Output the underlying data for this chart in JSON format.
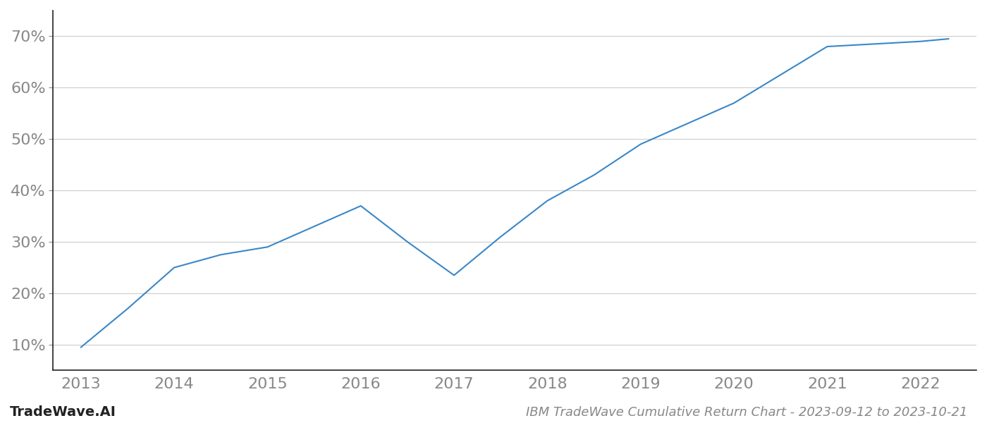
{
  "x_years": [
    2013,
    2013.5,
    2014,
    2014.5,
    2015,
    2015.5,
    2016,
    2016.5,
    2017,
    2017.5,
    2018,
    2018.5,
    2019,
    2019.5,
    2020,
    2020.5,
    2021,
    2021.5,
    2022,
    2022.3
  ],
  "y_values": [
    9.5,
    17.0,
    25.0,
    27.5,
    29.0,
    33.0,
    37.0,
    30.0,
    23.5,
    31.0,
    38.0,
    43.0,
    49.0,
    53.0,
    57.0,
    62.5,
    68.0,
    68.5,
    69.0,
    69.5
  ],
  "line_color": "#3a87c8",
  "line_width": 1.5,
  "background_color": "#ffffff",
  "grid_color": "#cccccc",
  "title": "IBM TradeWave Cumulative Return Chart - 2023-09-12 to 2023-10-21",
  "watermark": "TradeWave.AI",
  "ytick_labels": [
    "10%",
    "20%",
    "30%",
    "40%",
    "50%",
    "60%",
    "70%"
  ],
  "ytick_values": [
    10,
    20,
    30,
    40,
    50,
    60,
    70
  ],
  "xlim": [
    2012.7,
    2022.6
  ],
  "ylim": [
    5,
    75
  ],
  "xtick_years": [
    2013,
    2014,
    2015,
    2016,
    2017,
    2018,
    2019,
    2020,
    2021,
    2022
  ],
  "title_fontsize": 13,
  "tick_fontsize": 16,
  "watermark_fontsize": 14
}
